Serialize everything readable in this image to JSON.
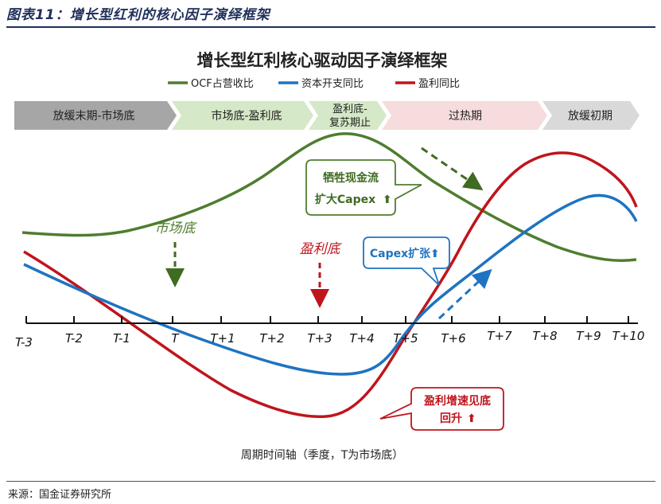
{
  "header": {
    "title": "图表11：增长型红利的核心因子演绎框架"
  },
  "diagram": {
    "title": "增长型红利核心驱动因子演绎框架",
    "legend": [
      {
        "label": "OCF占营收比",
        "color": "#4e7d2f"
      },
      {
        "label": "资本开支同比",
        "color": "#1f73c1"
      },
      {
        "label": "盈利同比",
        "color": "#c0141c"
      }
    ],
    "phases": [
      {
        "label": "放缓末期-市场底",
        "fill": "#a6a6a6"
      },
      {
        "label": "市场底-盈利底",
        "fill": "#d5e8c7"
      },
      {
        "label_line1": "盈利底-",
        "label_line2": "复苏期止",
        "fill": "#d5e8c7"
      },
      {
        "label": "过热期",
        "fill": "#f6dcdc"
      },
      {
        "label": "放缓初期",
        "fill": "#d9d9d9"
      }
    ],
    "annotations": {
      "market_bottom": "市场底",
      "profit_bottom": "盈利底",
      "ocf_callout_line1": "牺牲现金流",
      "ocf_callout_line2": "扩大Capex",
      "capex_callout": "Capex扩张",
      "profit_callout_line1": "盈利增速见底",
      "profit_callout_line2": "回升"
    },
    "axis_ticks": [
      "T-3",
      "T-2",
      "T-1",
      "T",
      "T+1",
      "T+2",
      "T+3",
      "T+4",
      "T+5",
      "T+6",
      "T+7",
      "T+8",
      "T+9",
      "T+10"
    ],
    "xlabel": "周期时间轴（季度，T为市场底）"
  },
  "footer": {
    "source": "来源：国金证券研究所"
  }
}
